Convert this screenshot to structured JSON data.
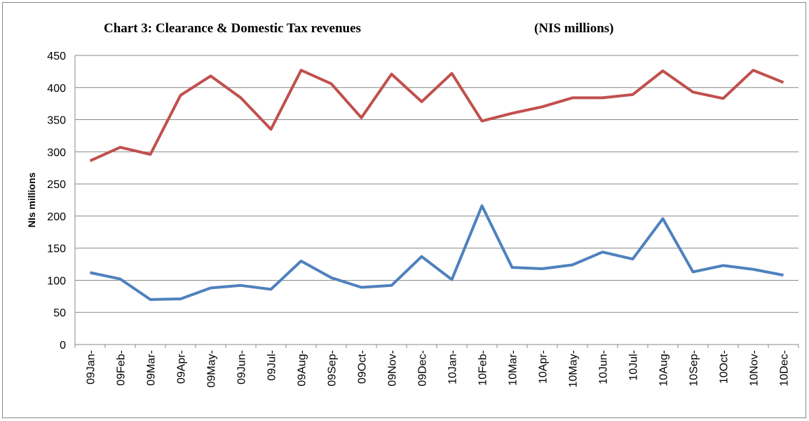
{
  "chart_data": {
    "type": "line",
    "title": "Chart 3: Clearance & Domestic Tax revenues",
    "subtitle": "(NIS millions)",
    "y_label": "NIs millions",
    "categories": [
      "09Jan-",
      "09Feb-",
      "09Mar-",
      "09Apr-",
      "09May-",
      "09Jun-",
      "09Jul-",
      "09Aug-",
      "09Sep-",
      "09Oct-",
      "09Nov-",
      "09Dec-",
      "10Jan-",
      "10Feb-",
      "10Mar-",
      "10Apr-",
      "10May-",
      "10Jun-",
      "10Jul-",
      "10Aug-",
      "10Sep-",
      "10Oct-",
      "10Nov-",
      "10Dec-"
    ],
    "series": [
      {
        "color": "#c0504d",
        "values": [
          286,
          307,
          296,
          388,
          418,
          384,
          335,
          427,
          406,
          353,
          421,
          378,
          422,
          348,
          360,
          370,
          384,
          384,
          389,
          426,
          393,
          383,
          427,
          408
        ]
      },
      {
        "color": "#4f81bd",
        "values": [
          112,
          102,
          70,
          71,
          88,
          92,
          86,
          130,
          104,
          89,
          92,
          137,
          101,
          216,
          120,
          118,
          124,
          144,
          133,
          196,
          113,
          123,
          117,
          108
        ]
      }
    ],
    "ylim": [
      0,
      450
    ],
    "yticks": [
      0,
      50,
      100,
      150,
      200,
      250,
      300,
      350,
      400,
      450
    ],
    "grid": true
  }
}
